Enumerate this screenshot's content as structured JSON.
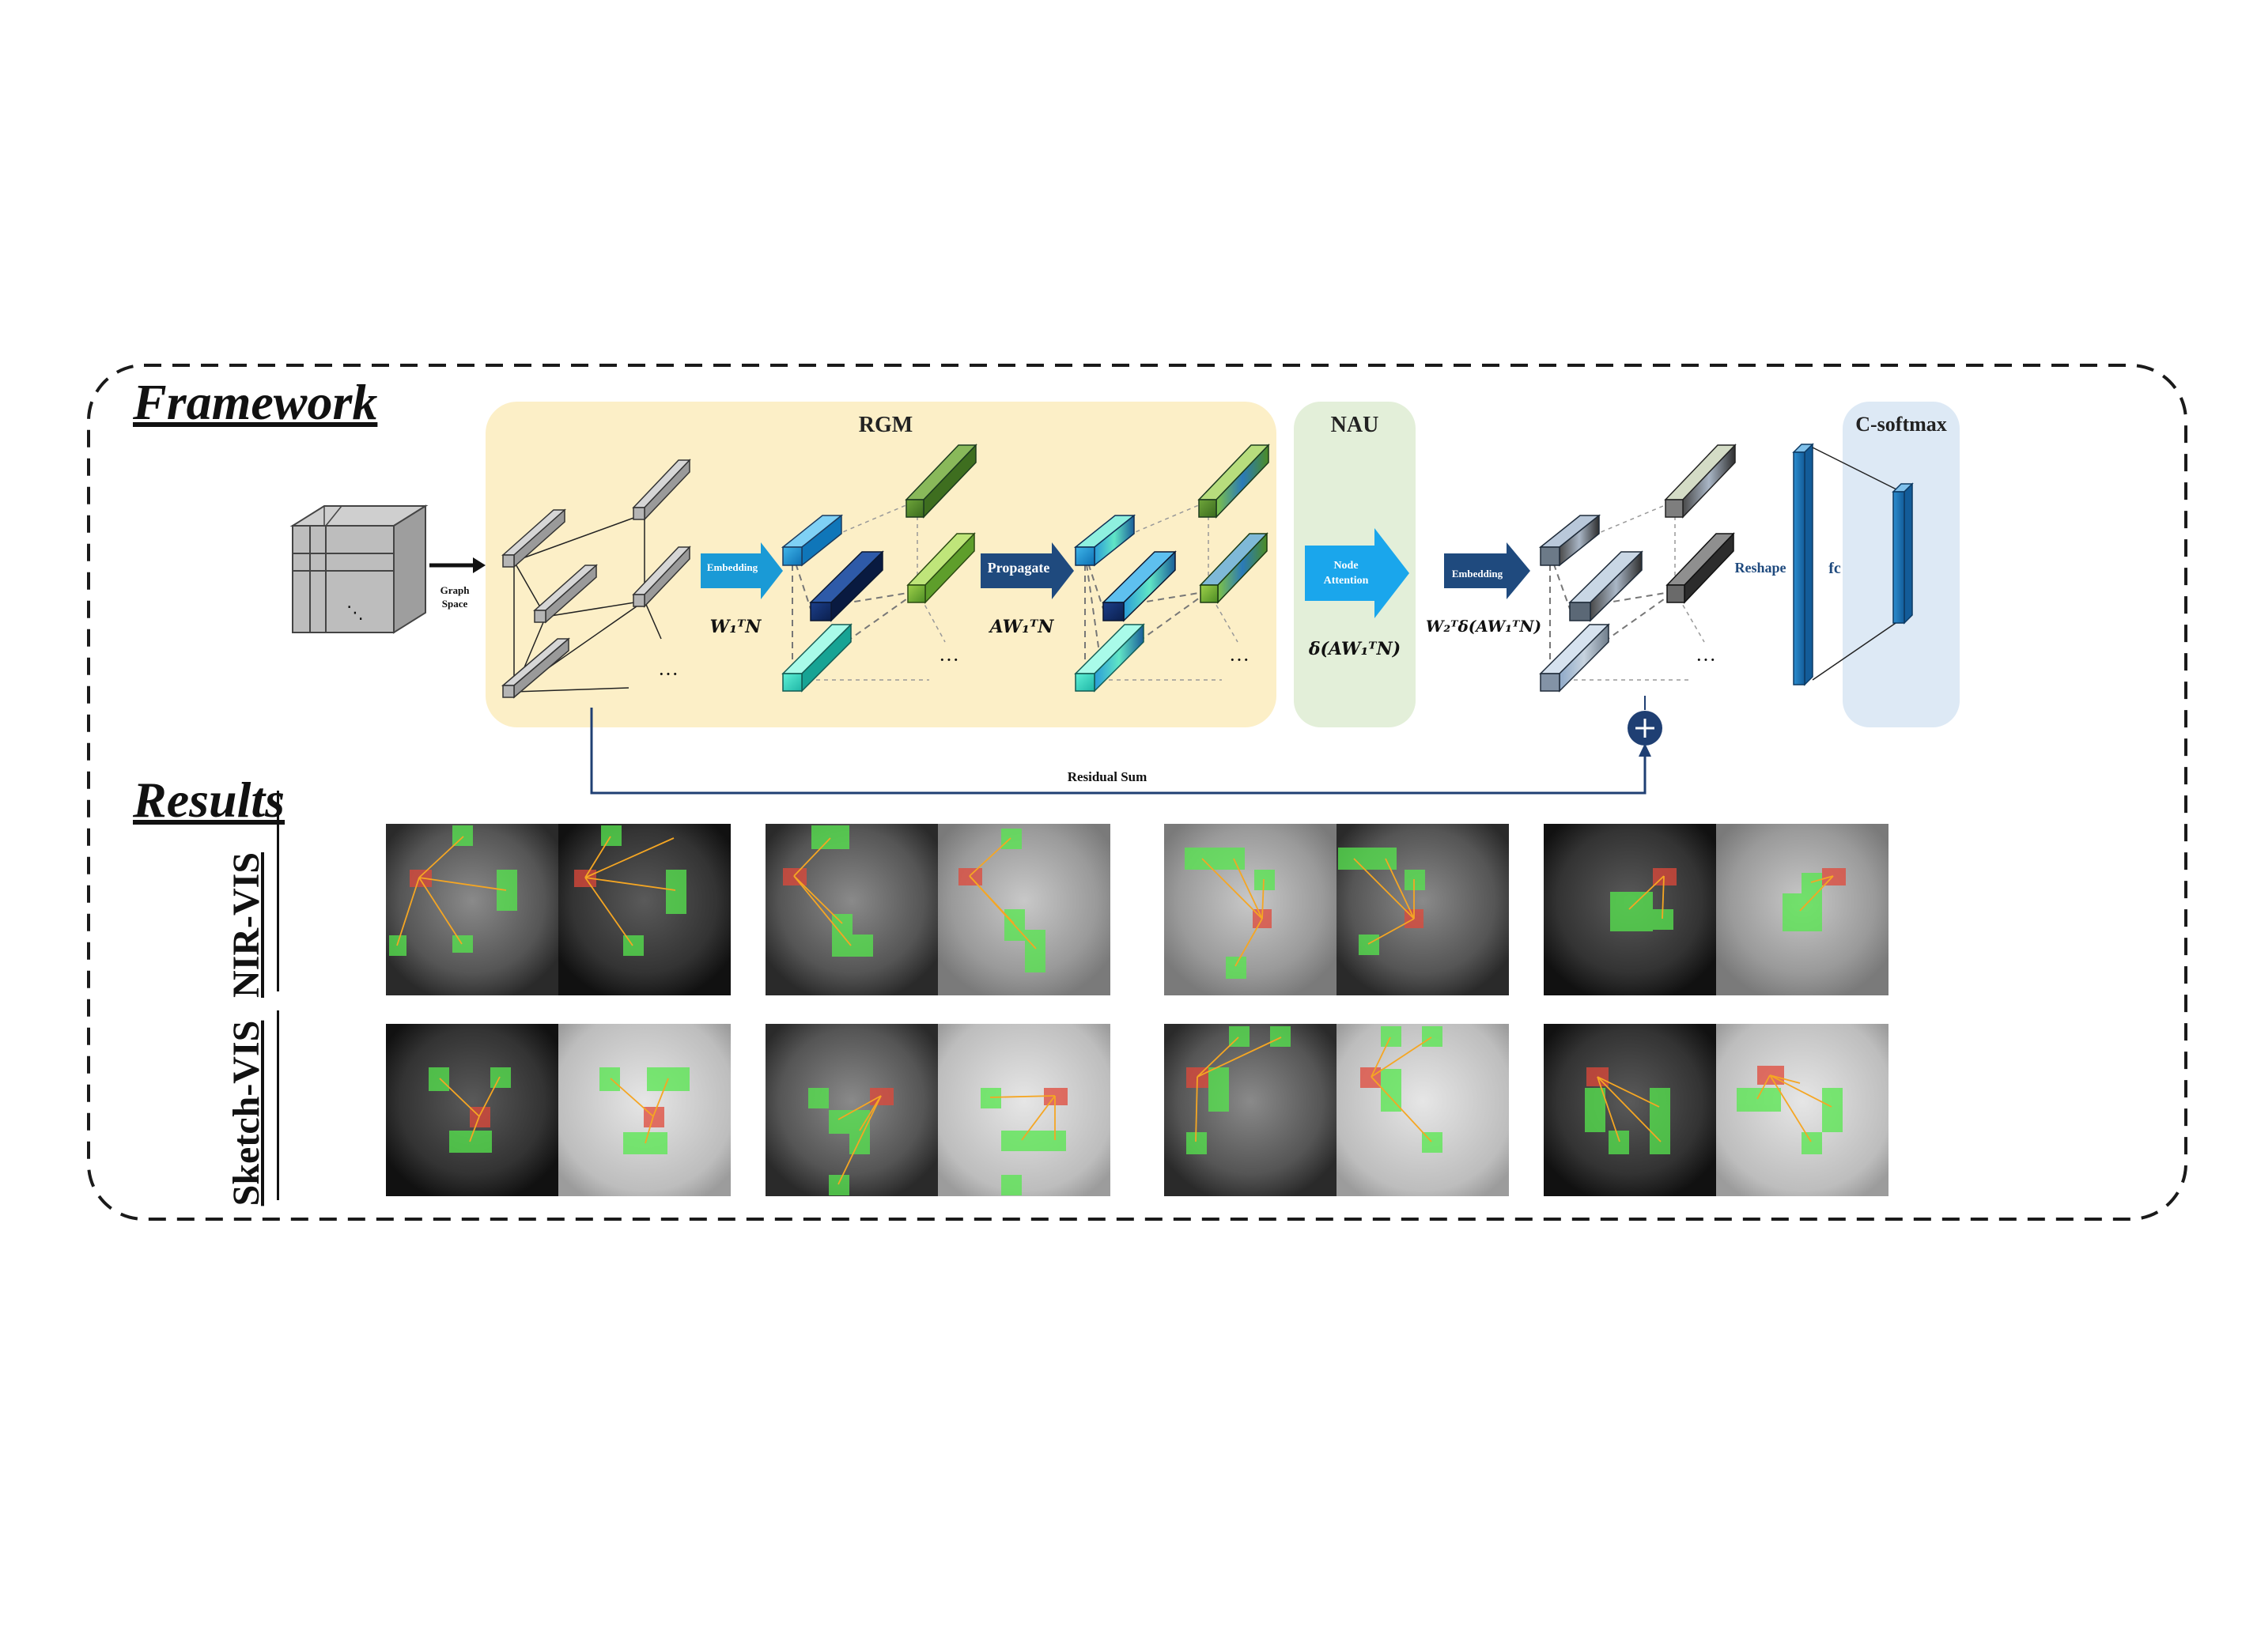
{
  "sections": {
    "framework": "Framework",
    "results": "Results"
  },
  "modules": {
    "rgm": "RGM",
    "nau": "NAU",
    "csoftmax": "C-softmax"
  },
  "labels": {
    "graph_space_line1": "Graph",
    "graph_space_line2": "Space",
    "embedding1": "Embedding",
    "propagate": "Propagate",
    "node_attention_line1": "Node",
    "node_attention_line2": "Attention",
    "embedding2": "Embedding",
    "reshape": "Reshape",
    "fc": "fc",
    "residual_sum": "Residual Sum",
    "ellipsis": "···"
  },
  "formulas": {
    "w1n": "W₁ᵀN",
    "aw1n": "AW₁ᵀN",
    "delta": "δ(AW₁ᵀN)",
    "w2": "W₂ᵀδ(AW₁ᵀN)"
  },
  "rows": {
    "nir": "NIR-VIS",
    "sketch": "Sketch-VIS"
  },
  "colors": {
    "rgm_bg": "#fcefc7",
    "nau_bg": "#e3efd9",
    "csoftmax_bg": "#dde9f5",
    "arrow_light": "#1a9ad6",
    "arrow_dark": "#1f4a7e",
    "residual_line": "#1f3f73",
    "highlight_green": "#56e84e",
    "highlight_red": "#e0483a"
  }
}
